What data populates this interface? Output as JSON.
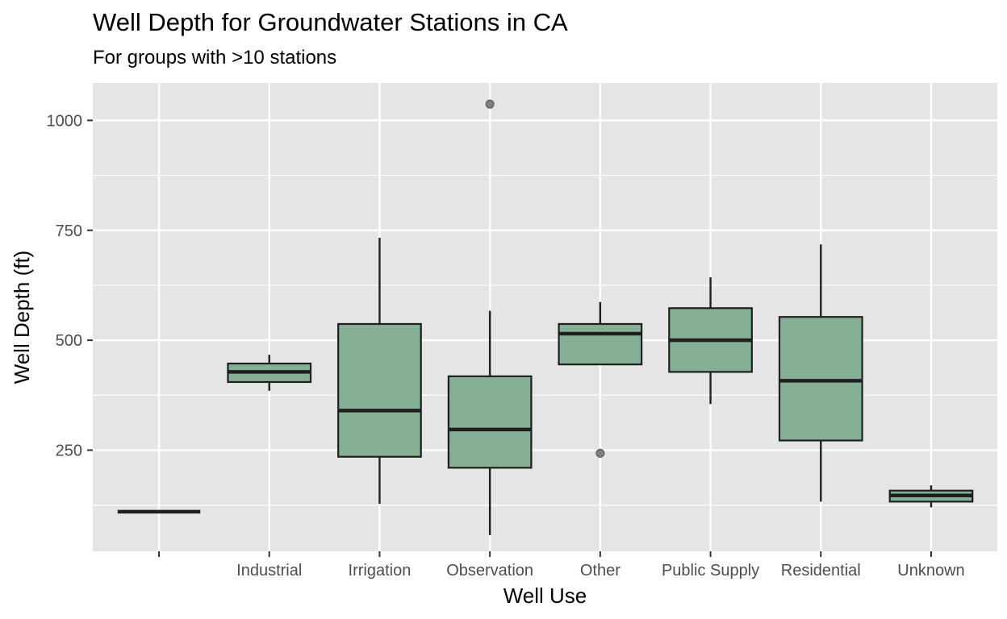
{
  "chart_data": {
    "type": "boxplot",
    "title": "Well Depth for Groundwater Stations in CA",
    "subtitle": "For groups with >10 stations",
    "xlabel": "Well Use",
    "ylabel": "Well Depth (ft)",
    "ylim": [
      20,
      1085
    ],
    "yticks": [
      250,
      500,
      750,
      1000
    ],
    "categories": [
      "",
      "Industrial",
      "Irrigation",
      "Observation",
      "Other",
      "Public Supply",
      "Residential",
      "Unknown"
    ],
    "boxes": [
      {
        "category": "",
        "min": 110,
        "q1": 110,
        "median": 110,
        "q3": 110,
        "max": 110,
        "outliers": []
      },
      {
        "category": "Industrial",
        "min": 385,
        "q1": 405,
        "median": 428,
        "q3": 447,
        "max": 467,
        "outliers": []
      },
      {
        "category": "Irrigation",
        "min": 128,
        "q1": 235,
        "median": 340,
        "q3": 537,
        "max": 733,
        "outliers": []
      },
      {
        "category": "Observation",
        "min": 57,
        "q1": 210,
        "median": 297,
        "q3": 418,
        "max": 567,
        "outliers": [
          1037
        ]
      },
      {
        "category": "Other",
        "min": 445,
        "q1": 445,
        "median": 515,
        "q3": 537,
        "max": 587,
        "outliers": [
          243
        ]
      },
      {
        "category": "Public Supply",
        "min": 355,
        "q1": 428,
        "median": 500,
        "q3": 573,
        "max": 643,
        "outliers": []
      },
      {
        "category": "Residential",
        "min": 133,
        "q1": 272,
        "median": 408,
        "q3": 553,
        "max": 718,
        "outliers": []
      },
      {
        "category": "Unknown",
        "min": 120,
        "q1": 133,
        "median": 147,
        "q3": 158,
        "max": 170,
        "outliers": []
      }
    ],
    "colors": {
      "panel": "#e5e5e5",
      "grid": "#ffffff",
      "box_fill": "#86b096",
      "box_stroke": "#1f1f1f",
      "outlier": "#7f7f7f"
    },
    "grid": true,
    "legend": "none"
  }
}
